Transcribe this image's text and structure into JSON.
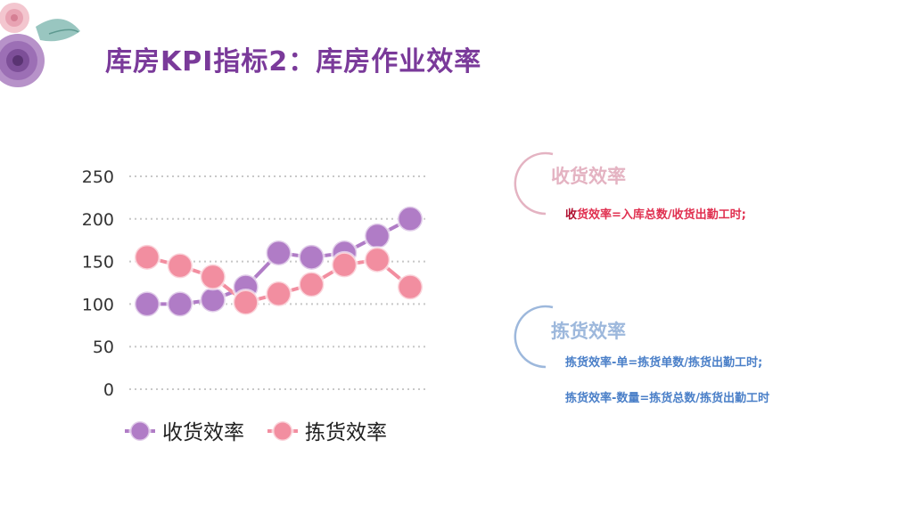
{
  "title": "库房KPI指标2：库房作业效率",
  "receiving": {
    "heading": "收货效率",
    "formula_prefix": "收",
    "formula_rest": "货效率=入库总数/收货出勤工时;",
    "color": "#e03050"
  },
  "picking": {
    "heading": "拣货效率",
    "formula1": "拣货效率-单=拣货单数/拣货出勤工时;",
    "formula2": "拣货效率-数量=拣货总数/拣货出勤工时",
    "color": "#4a7fc8"
  },
  "chart_data": {
    "type": "line",
    "x": [
      1,
      2,
      3,
      4,
      5,
      6,
      7,
      8,
      9
    ],
    "ylim": [
      0,
      250
    ],
    "yticks": [
      "0",
      "50",
      "100",
      "150",
      "200",
      "250"
    ],
    "grid": true,
    "legend_position": "bottom",
    "series": [
      {
        "name": "收货效率",
        "values": [
          100,
          100,
          105,
          120,
          160,
          155,
          160,
          180,
          200
        ],
        "color": "#b07cc6"
      },
      {
        "name": "拣货效率",
        "values": [
          155,
          145,
          132,
          102,
          112,
          123,
          146,
          152,
          120
        ],
        "color": "#f28ea0"
      }
    ]
  }
}
